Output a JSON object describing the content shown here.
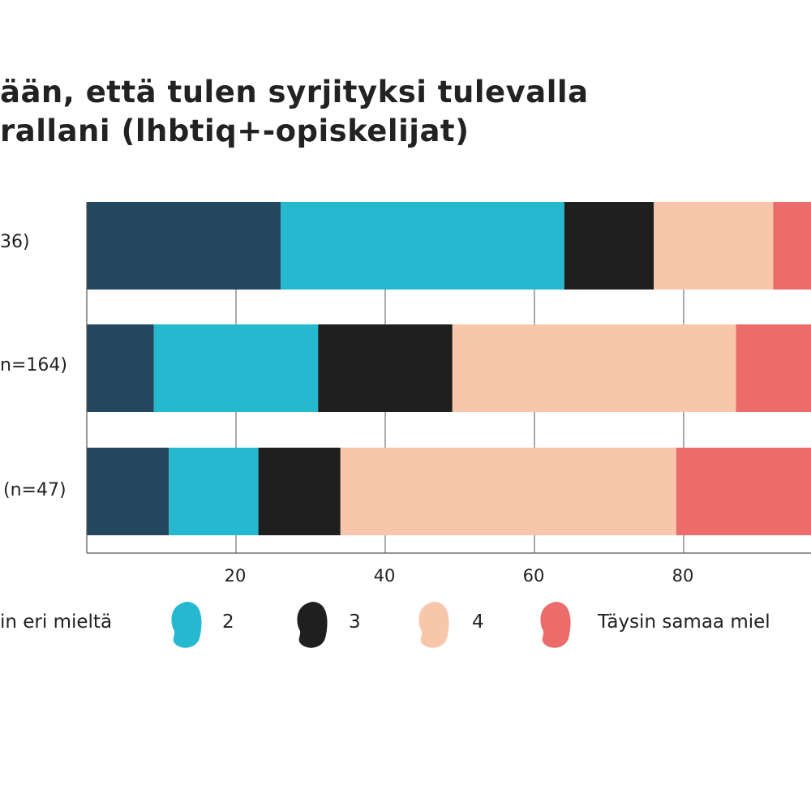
{
  "title": {
    "line1": "ään, että tulen syrjityksi tulevalla",
    "line2": "rallani (lhbtiq+-opiskelijat)"
  },
  "chart_data": {
    "type": "bar",
    "orientation": "horizontal",
    "stacked": true,
    "categories": [
      "36)",
      "n=164)",
      "(n=47)"
    ],
    "series": [
      {
        "name": "in eri mieltä",
        "color": "#22475f",
        "values": [
          26,
          9,
          11
        ]
      },
      {
        "name": "2",
        "color": "#24b9cf",
        "values": [
          38,
          22,
          12
        ]
      },
      {
        "name": "3",
        "color": "#1f1f1f",
        "values": [
          12,
          18,
          11
        ]
      },
      {
        "name": "4",
        "color": "#f8c6aa",
        "values": [
          16,
          38,
          45
        ]
      },
      {
        "name": "Täysin samaa miel",
        "color": "#ec6b6b",
        "values": [
          8,
          13,
          21
        ]
      }
    ],
    "xlim": [
      0,
      100
    ],
    "x_ticks": [
      "20",
      "40",
      "60",
      "80"
    ],
    "grid": true,
    "legend": "bottom"
  }
}
